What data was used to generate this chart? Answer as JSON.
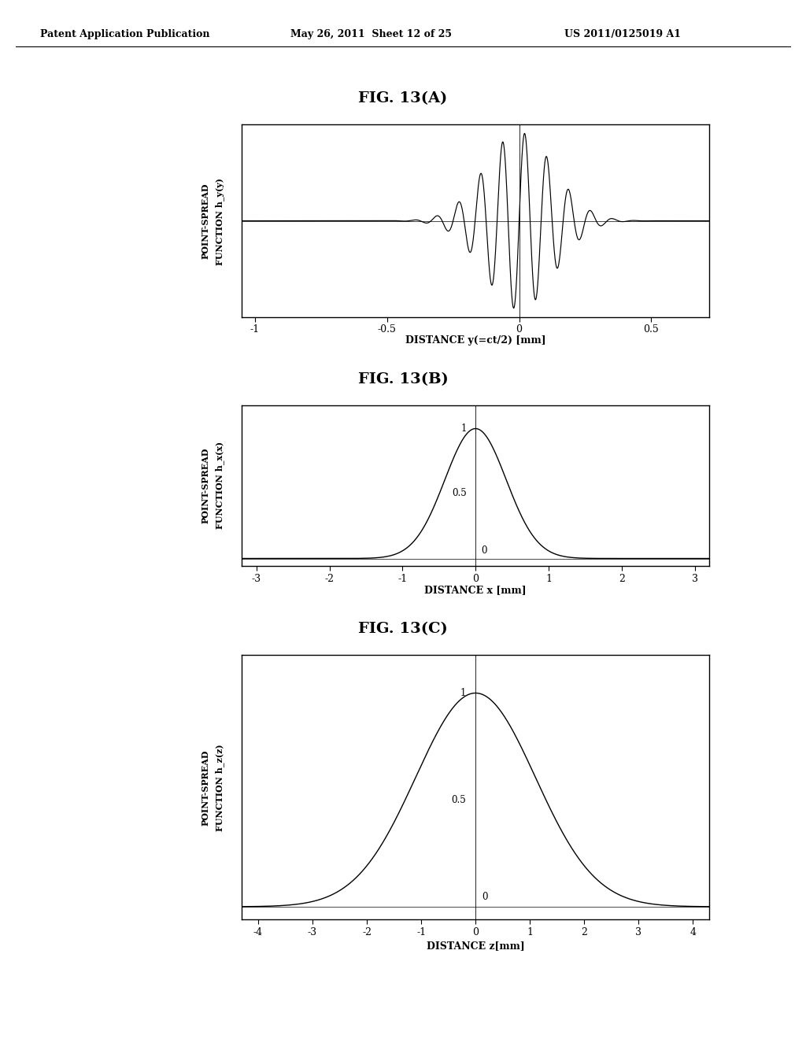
{
  "header_left": "Patent Application Publication",
  "header_mid": "May 26, 2011  Sheet 12 of 25",
  "header_right": "US 2011/0125019 A1",
  "fig_titles": [
    "FIG. 13(A)",
    "FIG. 13(B)",
    "FIG. 13(C)"
  ],
  "figA": {
    "ylabel_line1": "POINT-SPREAD",
    "ylabel_line2": "FUNCTION h_y(y)",
    "xlabel": "DISTANCE y(=ct/2) [mm]",
    "xlim": [
      -1.05,
      0.72
    ],
    "xticks": [
      -1,
      -0.5,
      0,
      0.5
    ],
    "xticklabels": [
      "-1",
      "-0.5",
      "0",
      "0.5"
    ],
    "freq": 12.0,
    "sigma_env": 0.13
  },
  "figB": {
    "ylabel_line1": "POINT-SPREAD",
    "ylabel_line2": "FUNCTION h_x(x)",
    "xlabel": "DISTANCE x [mm]",
    "xlim": [
      -3.2,
      3.2
    ],
    "xticks": [
      -3,
      -2,
      -1,
      0,
      1,
      2,
      3
    ],
    "xticklabels": [
      "-3",
      "-2",
      "-1",
      "0",
      "1",
      "2",
      "3"
    ],
    "sigma": 0.42
  },
  "figC": {
    "ylabel_line1": "POINT-SPREAD",
    "ylabel_line2": "FUNCTION h_z(z)",
    "xlabel": "DISTANCE z[mm]",
    "xlim": [
      -4.3,
      4.3
    ],
    "xticks": [
      -4,
      -3,
      -2,
      -1,
      0,
      1,
      2,
      3,
      4
    ],
    "xticklabels": [
      "-4",
      "-3",
      "-2",
      "-1",
      "0",
      "1",
      "2",
      "3",
      "4"
    ],
    "sigma": 1.1
  },
  "bg": "#ffffff",
  "lc": "#000000",
  "plot_facecolor": "#ffffff"
}
